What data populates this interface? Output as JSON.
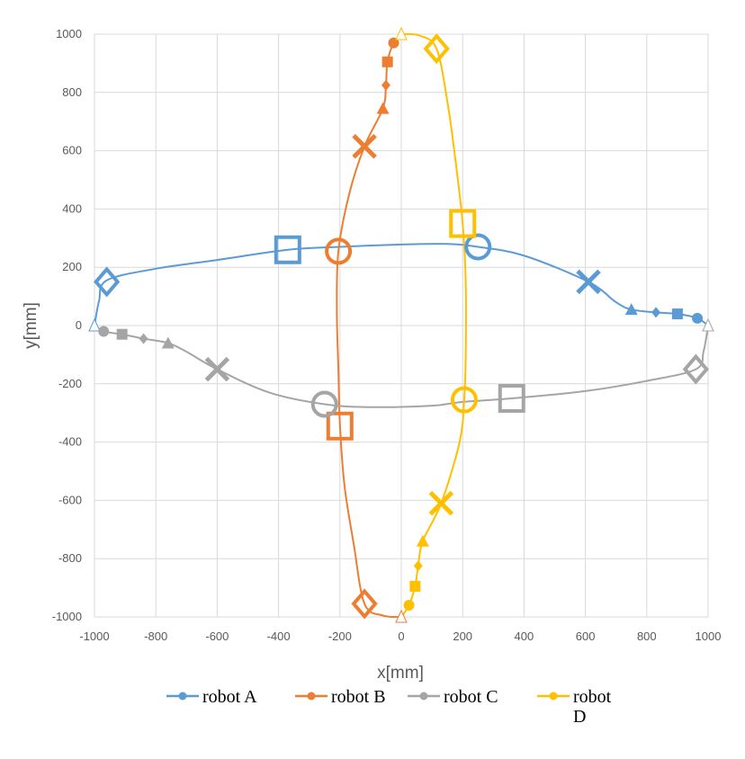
{
  "chart_data": {
    "type": "scatter",
    "title": "",
    "xlabel": "x[mm]",
    "ylabel": "y[mm]",
    "xlim": [
      -1000,
      1000
    ],
    "ylim": [
      -1000,
      1000
    ],
    "x_ticks": [
      "-1000",
      "-800",
      "-600",
      "-400",
      "-200",
      "0",
      "200",
      "400",
      "600",
      "800",
      "1000"
    ],
    "y_ticks": [
      "1000",
      "800",
      "600",
      "400",
      "200",
      "0",
      "-200",
      "-400",
      "-600",
      "-800",
      "-1000"
    ],
    "grid": "vertical and horizontal",
    "legend_position": "bottom",
    "series": [
      {
        "name": "robot A",
        "color": "#5B9BD5",
        "curve": [
          [
            -1000,
            0
          ],
          [
            -985,
            85
          ],
          [
            -960,
            155
          ],
          [
            -800,
            195
          ],
          [
            -600,
            225
          ],
          [
            -370,
            260
          ],
          [
            -200,
            270
          ],
          [
            0,
            278
          ],
          [
            150,
            280
          ],
          [
            250,
            270
          ],
          [
            400,
            240
          ],
          [
            610,
            150
          ],
          [
            700,
            80
          ],
          [
            750,
            55
          ],
          [
            830,
            45
          ],
          [
            900,
            40
          ],
          [
            965,
            25
          ],
          [
            1000,
            0
          ]
        ],
        "markers": [
          {
            "shape": "triangle-open",
            "x": -1000,
            "y": 0
          },
          {
            "shape": "diamond-open",
            "x": -960,
            "y": 150
          },
          {
            "shape": "square-open",
            "x": -370,
            "y": 260
          },
          {
            "shape": "circle-open",
            "x": 250,
            "y": 270
          },
          {
            "shape": "cross",
            "x": 610,
            "y": 150
          },
          {
            "shape": "triangle",
            "x": 750,
            "y": 55
          },
          {
            "shape": "diamond",
            "x": 830,
            "y": 45
          },
          {
            "shape": "square",
            "x": 900,
            "y": 40
          },
          {
            "shape": "circle",
            "x": 965,
            "y": 25
          }
        ]
      },
      {
        "name": "robot B",
        "color": "#ED7D31",
        "curve": [
          [
            0,
            1000
          ],
          [
            -25,
            970
          ],
          [
            -45,
            905
          ],
          [
            -50,
            825
          ],
          [
            -60,
            745
          ],
          [
            -120,
            615
          ],
          [
            -170,
            450
          ],
          [
            -205,
            255
          ],
          [
            -210,
            50
          ],
          [
            -205,
            -150
          ],
          [
            -200,
            -340
          ],
          [
            -185,
            -550
          ],
          [
            -155,
            -750
          ],
          [
            -120,
            -955
          ],
          [
            -60,
            -995
          ],
          [
            0,
            -1000
          ]
        ],
        "markers": [
          {
            "shape": "triangle-open",
            "x": 0,
            "y": -1000
          },
          {
            "shape": "diamond-open",
            "x": -120,
            "y": -955
          },
          {
            "shape": "square-open",
            "x": -200,
            "y": -345
          },
          {
            "shape": "circle-open",
            "x": -205,
            "y": 255
          },
          {
            "shape": "cross",
            "x": -120,
            "y": 615
          },
          {
            "shape": "triangle",
            "x": -60,
            "y": 745
          },
          {
            "shape": "diamond",
            "x": -50,
            "y": 825
          },
          {
            "shape": "square",
            "x": -45,
            "y": 905
          },
          {
            "shape": "circle",
            "x": -25,
            "y": 970
          }
        ]
      },
      {
        "name": "robot C",
        "color": "#A5A5A5",
        "curve": [
          [
            -1000,
            0
          ],
          [
            -970,
            -20
          ],
          [
            -910,
            -30
          ],
          [
            -840,
            -45
          ],
          [
            -760,
            -60
          ],
          [
            -700,
            -90
          ],
          [
            -600,
            -150
          ],
          [
            -430,
            -230
          ],
          [
            -250,
            -270
          ],
          [
            -100,
            -280
          ],
          [
            100,
            -275
          ],
          [
            200,
            -262
          ],
          [
            360,
            -250
          ],
          [
            600,
            -225
          ],
          [
            800,
            -190
          ],
          [
            960,
            -150
          ],
          [
            985,
            -90
          ],
          [
            1000,
            0
          ]
        ],
        "markers": [
          {
            "shape": "triangle-open",
            "x": 1000,
            "y": 0
          },
          {
            "shape": "diamond-open",
            "x": 960,
            "y": -150
          },
          {
            "shape": "square-open",
            "x": 360,
            "y": -250
          },
          {
            "shape": "circle-open",
            "x": -250,
            "y": -270
          },
          {
            "shape": "cross",
            "x": -600,
            "y": -150
          },
          {
            "shape": "triangle",
            "x": -760,
            "y": -60
          },
          {
            "shape": "diamond",
            "x": -840,
            "y": -45
          },
          {
            "shape": "square",
            "x": -910,
            "y": -30
          },
          {
            "shape": "circle",
            "x": -970,
            "y": -20
          }
        ]
      },
      {
        "name": "robot D",
        "color": "#FFC000",
        "curve": [
          [
            0,
            1000
          ],
          [
            60,
            995
          ],
          [
            115,
            950
          ],
          [
            150,
            770
          ],
          [
            175,
            580
          ],
          [
            200,
            350
          ],
          [
            210,
            150
          ],
          [
            210,
            -100
          ],
          [
            205,
            -255
          ],
          [
            190,
            -400
          ],
          [
            130,
            -610
          ],
          [
            70,
            -740
          ],
          [
            55,
            -825
          ],
          [
            45,
            -895
          ],
          [
            25,
            -960
          ],
          [
            0,
            -1000
          ]
        ],
        "markers": [
          {
            "shape": "triangle-open",
            "x": 0,
            "y": 1000
          },
          {
            "shape": "diamond-open",
            "x": 115,
            "y": 950
          },
          {
            "shape": "square-open",
            "x": 200,
            "y": 350
          },
          {
            "shape": "circle-open",
            "x": 205,
            "y": -255
          },
          {
            "shape": "cross",
            "x": 130,
            "y": -610
          },
          {
            "shape": "triangle",
            "x": 70,
            "y": -740
          },
          {
            "shape": "diamond",
            "x": 55,
            "y": -825
          },
          {
            "shape": "square",
            "x": 45,
            "y": -895
          },
          {
            "shape": "circle",
            "x": 25,
            "y": -960
          }
        ]
      }
    ]
  }
}
